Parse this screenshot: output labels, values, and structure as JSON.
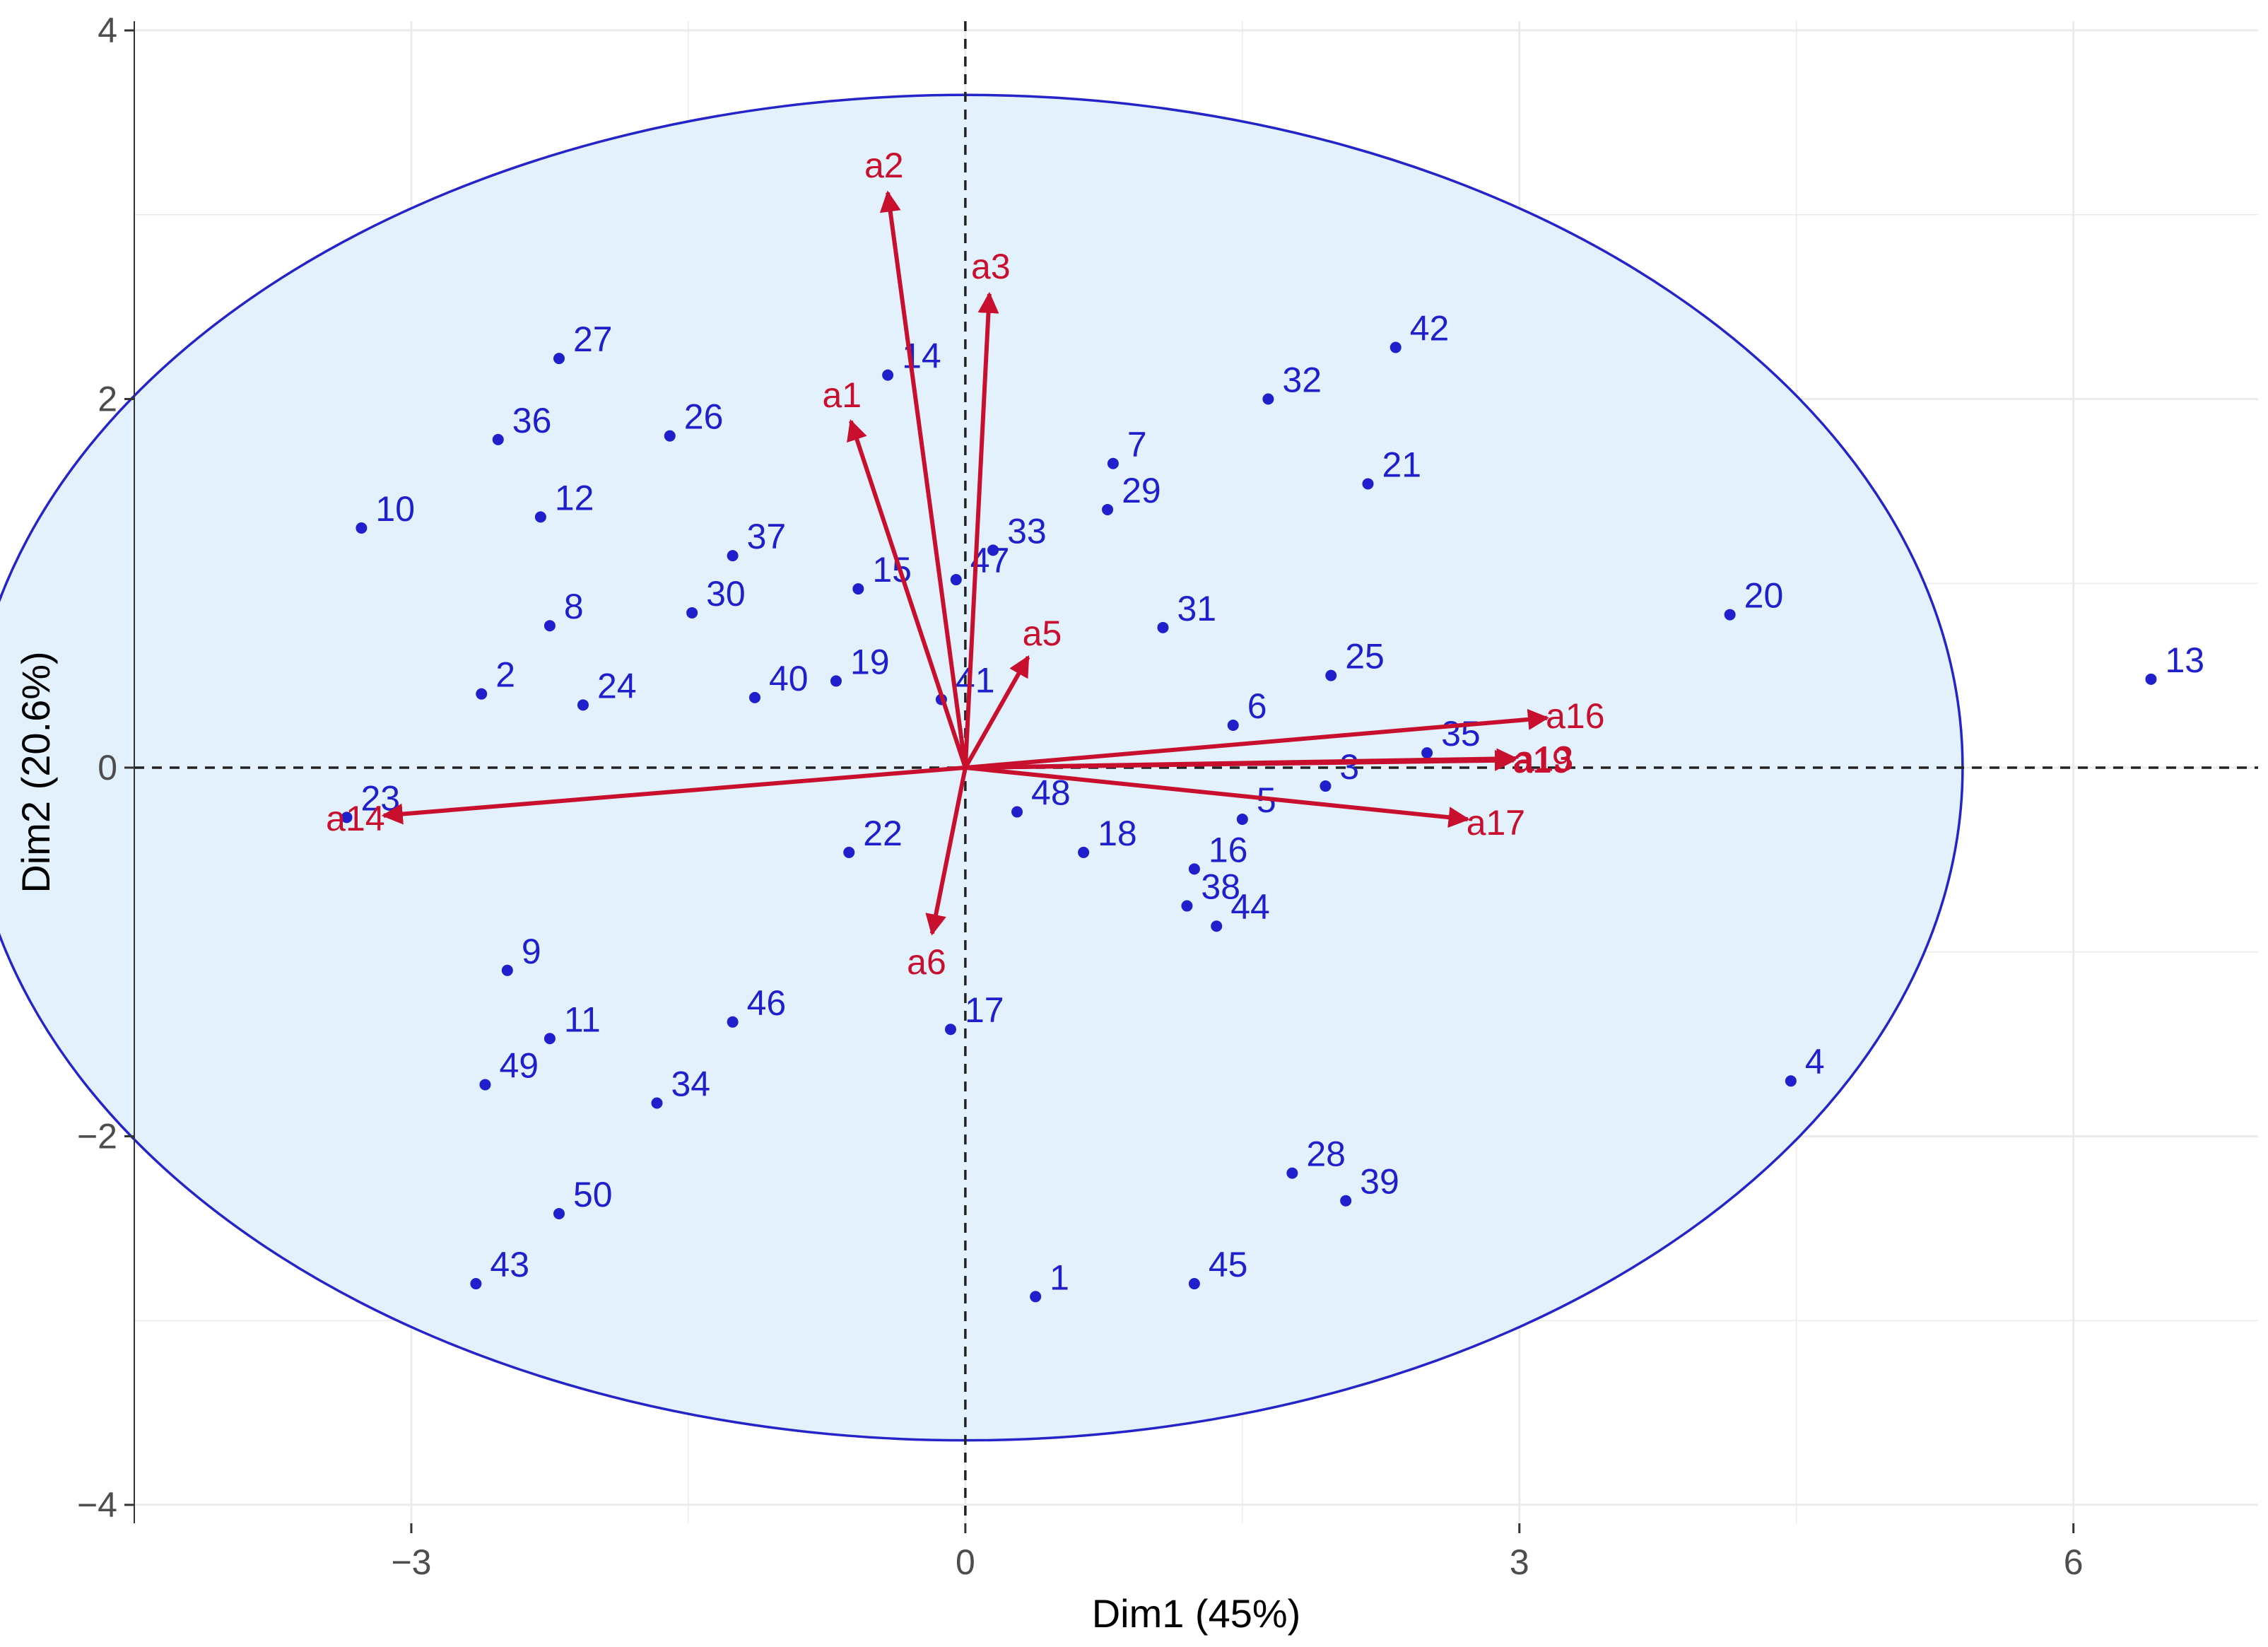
{
  "chart_data": {
    "type": "scatter",
    "xlabel": "Dim1 (45%)",
    "ylabel": "Dim2 (20.6%)",
    "xlim": [
      -4.5,
      7.0
    ],
    "ylim": [
      -4.1,
      4.05
    ],
    "xticks": [
      -3,
      0,
      3,
      6
    ],
    "xtick_labels": [
      "−3",
      "0",
      "3",
      "6"
    ],
    "yticks": [
      -4,
      -2,
      0,
      2,
      4
    ],
    "ytick_labels": [
      "−4",
      "−2",
      "0",
      "2",
      "4"
    ],
    "grid": true,
    "colors": {
      "points": "#1f1fcc",
      "vectors": "#c8102e",
      "ellipse_fill": "#e3f1fd",
      "ellipse_stroke": "#2424c8",
      "grid": "#ebebeb",
      "zero_lines": "#222222"
    },
    "ellipse": {
      "cx": 0.0,
      "cy": 0.0,
      "rx": 5.4,
      "ry": 3.65
    },
    "points": [
      {
        "label": "1",
        "x": 0.38,
        "y": -2.87
      },
      {
        "label": "2",
        "x": -2.62,
        "y": 0.4
      },
      {
        "label": "3",
        "x": 1.95,
        "y": -0.1
      },
      {
        "label": "4",
        "x": 4.47,
        "y": -1.7
      },
      {
        "label": "5",
        "x": 1.5,
        "y": -0.28
      },
      {
        "label": "6",
        "x": 1.45,
        "y": 0.23
      },
      {
        "label": "7",
        "x": 0.8,
        "y": 1.65
      },
      {
        "label": "8",
        "x": -2.25,
        "y": 0.77
      },
      {
        "label": "9",
        "x": -2.48,
        "y": -1.1
      },
      {
        "label": "10",
        "x": -3.27,
        "y": 1.3
      },
      {
        "label": "11",
        "x": -2.25,
        "y": -1.47
      },
      {
        "label": "12",
        "x": -2.3,
        "y": 1.36
      },
      {
        "label": "13",
        "x": 6.42,
        "y": 0.48
      },
      {
        "label": "14",
        "x": -0.42,
        "y": 2.13
      },
      {
        "label": "15",
        "x": -0.58,
        "y": 0.97
      },
      {
        "label": "16",
        "x": 1.24,
        "y": -0.55
      },
      {
        "label": "17",
        "x": -0.08,
        "y": -1.42
      },
      {
        "label": "18",
        "x": 0.64,
        "y": -0.46
      },
      {
        "label": "19",
        "x": -0.7,
        "y": 0.47
      },
      {
        "label": "20",
        "x": 4.14,
        "y": 0.83
      },
      {
        "label": "21",
        "x": 2.18,
        "y": 1.54
      },
      {
        "label": "22",
        "x": -0.63,
        "y": -0.46
      },
      {
        "label": "23",
        "x": -3.35,
        "y": -0.27
      },
      {
        "label": "24",
        "x": -2.07,
        "y": 0.34
      },
      {
        "label": "25",
        "x": 1.98,
        "y": 0.5
      },
      {
        "label": "26",
        "x": -1.6,
        "y": 1.8
      },
      {
        "label": "27",
        "x": -2.2,
        "y": 2.22
      },
      {
        "label": "28",
        "x": 1.77,
        "y": -2.2
      },
      {
        "label": "29",
        "x": 0.77,
        "y": 1.4
      },
      {
        "label": "30",
        "x": -1.48,
        "y": 0.84
      },
      {
        "label": "31",
        "x": 1.07,
        "y": 0.76
      },
      {
        "label": "32",
        "x": 1.64,
        "y": 2.0
      },
      {
        "label": "33",
        "x": 0.15,
        "y": 1.18
      },
      {
        "label": "34",
        "x": -1.67,
        "y": -1.82
      },
      {
        "label": "35",
        "x": 2.5,
        "y": 0.08
      },
      {
        "label": "36",
        "x": -2.53,
        "y": 1.78
      },
      {
        "label": "37",
        "x": -1.26,
        "y": 1.15
      },
      {
        "label": "38",
        "x": 1.2,
        "y": -0.75
      },
      {
        "label": "39",
        "x": 2.06,
        "y": -2.35
      },
      {
        "label": "40",
        "x": -1.14,
        "y": 0.38
      },
      {
        "label": "41",
        "x": -0.13,
        "y": 0.37
      },
      {
        "label": "42",
        "x": 2.33,
        "y": 2.28
      },
      {
        "label": "43",
        "x": -2.65,
        "y": -2.8
      },
      {
        "label": "44",
        "x": 1.36,
        "y": -0.86
      },
      {
        "label": "45",
        "x": 1.24,
        "y": -2.8
      },
      {
        "label": "46",
        "x": -1.26,
        "y": -1.38
      },
      {
        "label": "47",
        "x": -0.05,
        "y": 1.02
      },
      {
        "label": "48",
        "x": 0.28,
        "y": -0.24
      },
      {
        "label": "49",
        "x": -2.6,
        "y": -1.72
      },
      {
        "label": "50",
        "x": -2.2,
        "y": -2.42
      }
    ],
    "vectors": [
      {
        "label": "a1",
        "x": -0.62,
        "y": 1.88
      },
      {
        "label": "a2",
        "x": -0.42,
        "y": 3.12
      },
      {
        "label": "a3",
        "x": 0.13,
        "y": 2.57
      },
      {
        "label": "a5",
        "x": 0.34,
        "y": 0.6
      },
      {
        "label": "a6",
        "x": -0.18,
        "y": -0.9
      },
      {
        "label": "a13",
        "x": 2.98,
        "y": 0.05
      },
      {
        "label": "a14",
        "x": -3.15,
        "y": -0.26
      },
      {
        "label": "a16",
        "x": 3.15,
        "y": 0.27
      },
      {
        "label": "a17",
        "x": 2.72,
        "y": -0.28
      },
      {
        "label": "a19",
        "x": 2.97,
        "y": 0.04
      }
    ]
  }
}
